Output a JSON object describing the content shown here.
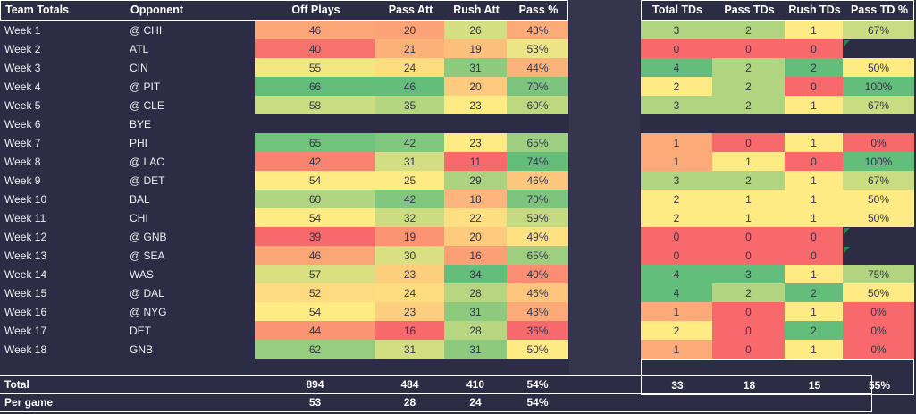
{
  "colors": {
    "background": "#2C2C44",
    "gap_band": "#35354E",
    "border": "#FFFFFF",
    "scale_red": "#F8696B",
    "scale_yellow": "#FFEB84",
    "scale_green": "#63BE7B",
    "flag_green": "#1B8A4C",
    "header_text": "#FFFFFF",
    "cell_text": "#34344E"
  },
  "left_table": {
    "headers": [
      "Team Totals",
      "Opponent",
      "Off Plays",
      "Pass Att",
      "Rush Att",
      "Pass %"
    ],
    "rows": [
      {
        "week": "Week 1",
        "opp": "@ CHI",
        "cells": [
          {
            "v": "46",
            "c": "#FBA677"
          },
          {
            "v": "20",
            "c": "#FBA376"
          },
          {
            "v": "26",
            "c": "#D4DF82"
          },
          {
            "v": "43%",
            "c": "#FCAA78"
          }
        ]
      },
      {
        "week": "Week 2",
        "opp": "ATL",
        "cells": [
          {
            "v": "40",
            "c": "#F8726D"
          },
          {
            "v": "21",
            "c": "#FCB179"
          },
          {
            "v": "19",
            "c": "#FDC07C"
          },
          {
            "v": "53%",
            "c": "#ECE583"
          }
        ]
      },
      {
        "week": "Week 3",
        "opp": "CIN",
        "cells": [
          {
            "v": "55",
            "c": "#F2E783"
          },
          {
            "v": "24",
            "c": "#FEDD81"
          },
          {
            "v": "31",
            "c": "#8ECA7E"
          },
          {
            "v": "44%",
            "c": "#FCB379"
          }
        ]
      },
      {
        "week": "Week 4",
        "opp": "@ PIT",
        "cells": [
          {
            "v": "66",
            "c": "#63BE7B"
          },
          {
            "v": "46",
            "c": "#63BE7B"
          },
          {
            "v": "20",
            "c": "#FDCA7E"
          },
          {
            "v": "70%",
            "c": "#7DC57D"
          }
        ]
      },
      {
        "week": "Week 5",
        "opp": "@ CLE",
        "cells": [
          {
            "v": "58",
            "c": "#CBDC81"
          },
          {
            "v": "35",
            "c": "#B5D680"
          },
          {
            "v": "23",
            "c": "#FFEB84"
          },
          {
            "v": "60%",
            "c": "#BED880"
          }
        ]
      },
      {
        "week": "Week 6",
        "opp": "BYE",
        "cells": [
          {
            "v": "",
            "c": null
          },
          {
            "v": "",
            "c": null
          },
          {
            "v": "",
            "c": null
          },
          {
            "v": "",
            "c": null
          }
        ]
      },
      {
        "week": "Week 7",
        "opp": "PHI",
        "cells": [
          {
            "v": "65",
            "c": "#70C27C"
          },
          {
            "v": "42",
            "c": "#81C77D"
          },
          {
            "v": "23",
            "c": "#FFEB84"
          },
          {
            "v": "65%",
            "c": "#9DCF7E"
          }
        ]
      },
      {
        "week": "Week 8",
        "opp": "@ LAC",
        "cells": [
          {
            "v": "42",
            "c": "#F98370"
          },
          {
            "v": "31",
            "c": "#D2DE81"
          },
          {
            "v": "11",
            "c": "#F8696B"
          },
          {
            "v": "74%",
            "c": "#63BE7B"
          }
        ]
      },
      {
        "week": "Week 9",
        "opp": "@ DET",
        "cells": [
          {
            "v": "54",
            "c": "#FFEB84"
          },
          {
            "v": "25",
            "c": "#FFEB84"
          },
          {
            "v": "29",
            "c": "#AAD27F"
          },
          {
            "v": "46%",
            "c": "#FDC67D"
          }
        ]
      },
      {
        "week": "Week 10",
        "opp": "BAL",
        "cells": [
          {
            "v": "60",
            "c": "#B1D480"
          },
          {
            "v": "42",
            "c": "#81C77D"
          },
          {
            "v": "18",
            "c": "#FCB57A"
          },
          {
            "v": "70%",
            "c": "#7DC57D"
          }
        ]
      },
      {
        "week": "Week 11",
        "opp": "CHI",
        "cells": [
          {
            "v": "54",
            "c": "#FFEB84"
          },
          {
            "v": "32",
            "c": "#CBDC81"
          },
          {
            "v": "22",
            "c": "#FEE082"
          },
          {
            "v": "59%",
            "c": "#C4DA81"
          }
        ]
      },
      {
        "week": "Week 12",
        "opp": "@ GNB",
        "cells": [
          {
            "v": "39",
            "c": "#F8696B"
          },
          {
            "v": "19",
            "c": "#FA9473"
          },
          {
            "v": "20",
            "c": "#FDCA7E"
          },
          {
            "v": "49%",
            "c": "#FEE282"
          }
        ]
      },
      {
        "week": "Week 13",
        "opp": "@ SEA",
        "cells": [
          {
            "v": "46",
            "c": "#FBA677"
          },
          {
            "v": "30",
            "c": "#DAE082"
          },
          {
            "v": "16",
            "c": "#FB9F75"
          },
          {
            "v": "65%",
            "c": "#9DCF7E"
          }
        ]
      },
      {
        "week": "Week 14",
        "opp": "WAS",
        "cells": [
          {
            "v": "57",
            "c": "#D8E082"
          },
          {
            "v": "23",
            "c": "#FDCE7E"
          },
          {
            "v": "34",
            "c": "#63BE7B"
          },
          {
            "v": "40%",
            "c": "#FA8E72"
          }
        ]
      },
      {
        "week": "Week 15",
        "opp": "@ DAL",
        "cells": [
          {
            "v": "52",
            "c": "#FEDA81"
          },
          {
            "v": "24",
            "c": "#FEDD81"
          },
          {
            "v": "28",
            "c": "#B8D680"
          },
          {
            "v": "46%",
            "c": "#FDC67D"
          }
        ]
      },
      {
        "week": "Week 16",
        "opp": "@ NYG",
        "cells": [
          {
            "v": "54",
            "c": "#FFEB84"
          },
          {
            "v": "23",
            "c": "#FDCE7E"
          },
          {
            "v": "31",
            "c": "#8ECA7E"
          },
          {
            "v": "43%",
            "c": "#FCAA78"
          }
        ]
      },
      {
        "week": "Week 17",
        "opp": "DET",
        "cells": [
          {
            "v": "44",
            "c": "#FA9473"
          },
          {
            "v": "16",
            "c": "#F8696B"
          },
          {
            "v": "28",
            "c": "#B8D680"
          },
          {
            "v": "36%",
            "c": "#F8696B"
          }
        ]
      },
      {
        "week": "Week 18",
        "opp": "GNB",
        "cells": [
          {
            "v": "62",
            "c": "#97CD7E"
          },
          {
            "v": "31",
            "c": "#D2DE81"
          },
          {
            "v": "31",
            "c": "#8ECA7E"
          },
          {
            "v": "50%",
            "c": "#FFEB84"
          }
        ]
      }
    ],
    "total": {
      "label": "Total",
      "values": [
        "894",
        "484",
        "410",
        "54%"
      ]
    },
    "per_game": {
      "label": "Per game",
      "values": [
        "53",
        "28",
        "24",
        "54%"
      ]
    }
  },
  "right_table": {
    "headers": [
      "Total TDs",
      "Pass TDs",
      "Rush TDs",
      "Pass TD %"
    ],
    "rows": [
      {
        "cells": [
          {
            "v": "3",
            "c": "#B1D480"
          },
          {
            "v": "2",
            "c": "#B1D480"
          },
          {
            "v": "1",
            "c": "#FFEB84"
          },
          {
            "v": "67%",
            "c": "#CADC81"
          }
        ]
      },
      {
        "cells": [
          {
            "v": "0",
            "c": "#F8696B"
          },
          {
            "v": "0",
            "c": "#F8696B"
          },
          {
            "v": "0",
            "c": "#F8696B"
          },
          {
            "v": "",
            "c": null,
            "flag": true
          }
        ]
      },
      {
        "cells": [
          {
            "v": "4",
            "c": "#63BE7B"
          },
          {
            "v": "2",
            "c": "#B1D480"
          },
          {
            "v": "2",
            "c": "#63BE7B"
          },
          {
            "v": "50%",
            "c": "#FFEB84"
          }
        ]
      },
      {
        "cells": [
          {
            "v": "2",
            "c": "#FFEB84"
          },
          {
            "v": "2",
            "c": "#B1D480"
          },
          {
            "v": "0",
            "c": "#F8696B"
          },
          {
            "v": "100%",
            "c": "#63BE7B"
          }
        ]
      },
      {
        "cells": [
          {
            "v": "3",
            "c": "#B1D480"
          },
          {
            "v": "2",
            "c": "#B1D480"
          },
          {
            "v": "1",
            "c": "#FFEB84"
          },
          {
            "v": "67%",
            "c": "#CADC81"
          }
        ]
      },
      {
        "cells": [
          {
            "v": "",
            "c": null
          },
          {
            "v": "",
            "c": null
          },
          {
            "v": "",
            "c": null
          },
          {
            "v": "",
            "c": null
          }
        ]
      },
      {
        "cells": [
          {
            "v": "1",
            "c": "#FBAA78"
          },
          {
            "v": "0",
            "c": "#F8696B"
          },
          {
            "v": "1",
            "c": "#FFEB84"
          },
          {
            "v": "0%",
            "c": "#F8696B"
          }
        ]
      },
      {
        "cells": [
          {
            "v": "1",
            "c": "#FBAA78"
          },
          {
            "v": "1",
            "c": "#FFEB84"
          },
          {
            "v": "0",
            "c": "#F8696B"
          },
          {
            "v": "100%",
            "c": "#63BE7B"
          }
        ]
      },
      {
        "cells": [
          {
            "v": "3",
            "c": "#B1D480"
          },
          {
            "v": "2",
            "c": "#B1D480"
          },
          {
            "v": "1",
            "c": "#FFEB84"
          },
          {
            "v": "67%",
            "c": "#CADC81"
          }
        ]
      },
      {
        "cells": [
          {
            "v": "2",
            "c": "#FFEB84"
          },
          {
            "v": "1",
            "c": "#FFEB84"
          },
          {
            "v": "1",
            "c": "#FFEB84"
          },
          {
            "v": "50%",
            "c": "#FFEB84"
          }
        ]
      },
      {
        "cells": [
          {
            "v": "2",
            "c": "#FFEB84"
          },
          {
            "v": "1",
            "c": "#FFEB84"
          },
          {
            "v": "1",
            "c": "#FFEB84"
          },
          {
            "v": "50%",
            "c": "#FFEB84"
          }
        ]
      },
      {
        "cells": [
          {
            "v": "0",
            "c": "#F8696B"
          },
          {
            "v": "0",
            "c": "#F8696B"
          },
          {
            "v": "0",
            "c": "#F8696B"
          },
          {
            "v": "",
            "c": null,
            "flag": true
          }
        ]
      },
      {
        "cells": [
          {
            "v": "0",
            "c": "#F8696B"
          },
          {
            "v": "0",
            "c": "#F8696B"
          },
          {
            "v": "0",
            "c": "#F8696B"
          },
          {
            "v": "",
            "c": null,
            "flag": true
          }
        ]
      },
      {
        "cells": [
          {
            "v": "4",
            "c": "#63BE7B"
          },
          {
            "v": "3",
            "c": "#63BE7B"
          },
          {
            "v": "1",
            "c": "#FFEB84"
          },
          {
            "v": "75%",
            "c": "#B1D480"
          }
        ]
      },
      {
        "cells": [
          {
            "v": "4",
            "c": "#63BE7B"
          },
          {
            "v": "2",
            "c": "#B1D480"
          },
          {
            "v": "2",
            "c": "#63BE7B"
          },
          {
            "v": "50%",
            "c": "#FFEB84"
          }
        ]
      },
      {
        "cells": [
          {
            "v": "1",
            "c": "#FBAA78"
          },
          {
            "v": "0",
            "c": "#F8696B"
          },
          {
            "v": "1",
            "c": "#FFEB84"
          },
          {
            "v": "0%",
            "c": "#F8696B"
          }
        ]
      },
      {
        "cells": [
          {
            "v": "2",
            "c": "#FFEB84"
          },
          {
            "v": "0",
            "c": "#F8696B"
          },
          {
            "v": "2",
            "c": "#63BE7B"
          },
          {
            "v": "0%",
            "c": "#F8696B"
          }
        ]
      },
      {
        "cells": [
          {
            "v": "1",
            "c": "#FBAA78"
          },
          {
            "v": "0",
            "c": "#F8696B"
          },
          {
            "v": "1",
            "c": "#FFEB84"
          },
          {
            "v": "0%",
            "c": "#F8696B"
          }
        ]
      }
    ],
    "total": {
      "values": [
        "33",
        "18",
        "15",
        "55%"
      ]
    }
  }
}
